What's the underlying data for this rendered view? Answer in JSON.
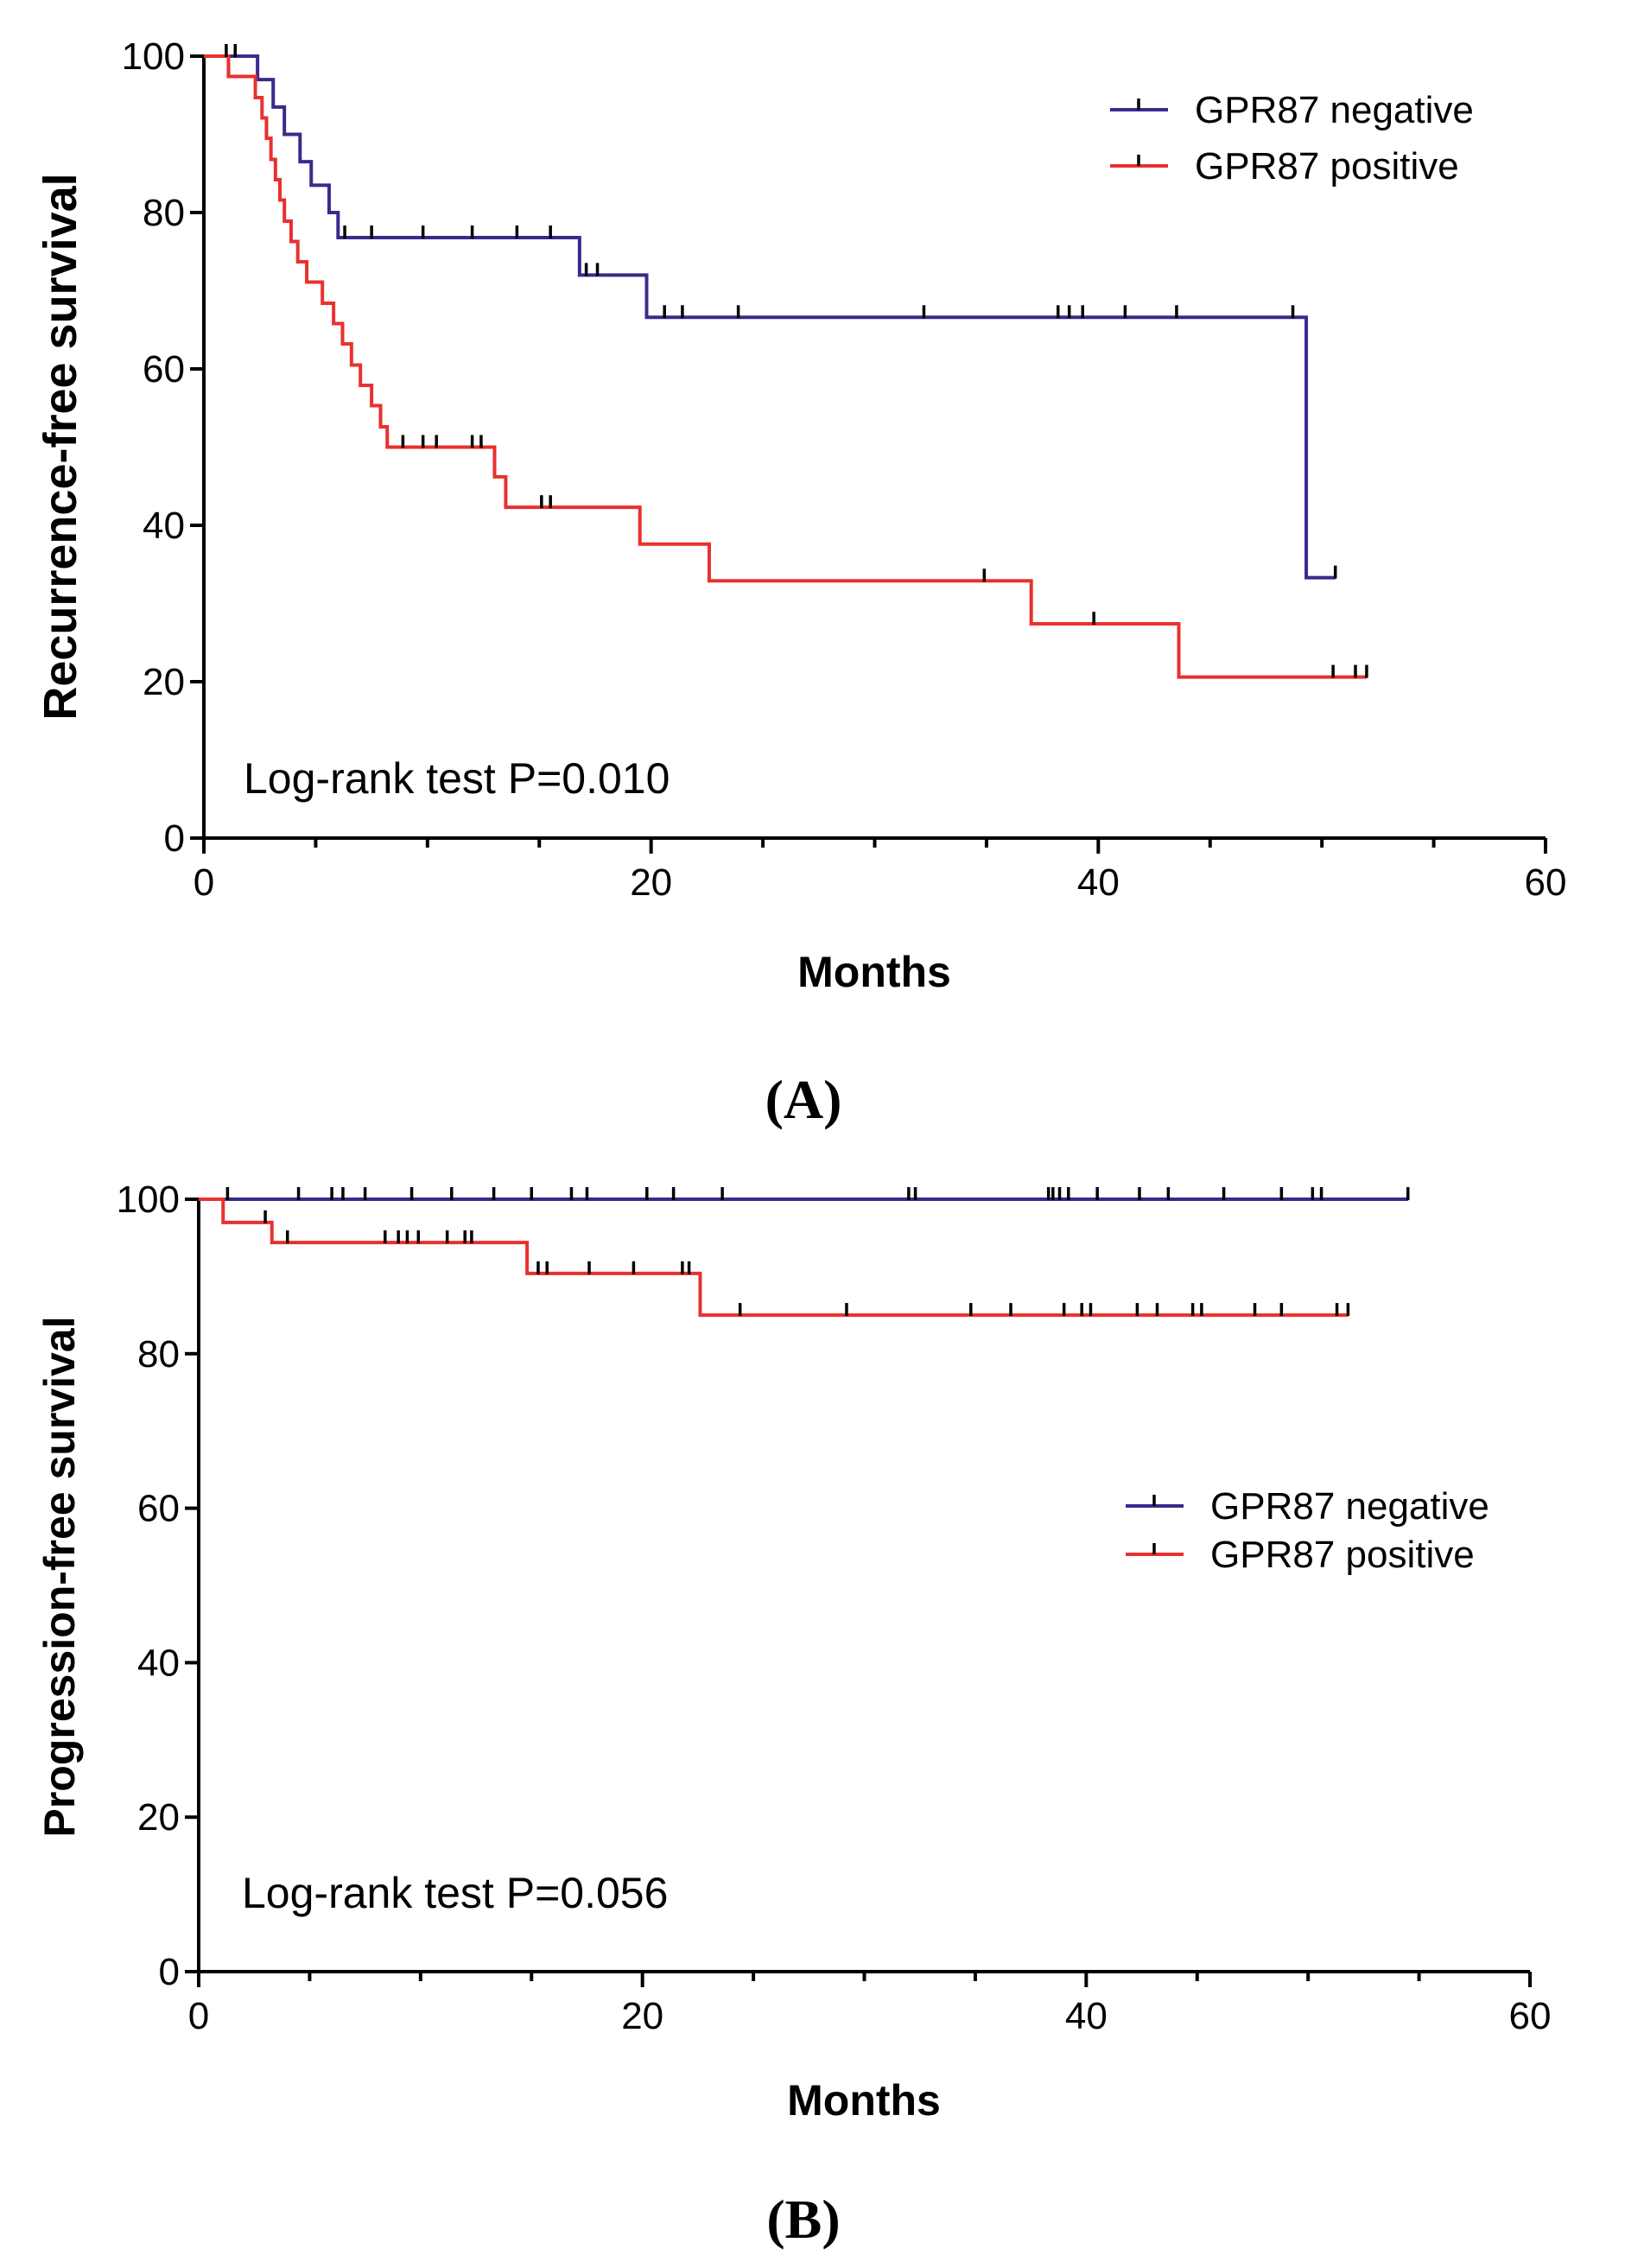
{
  "colors": {
    "negative": "#3a2a8c",
    "positive": "#e8312f",
    "axis": "#000000",
    "censor": "#000000"
  },
  "chart_data": [
    {
      "type": "line",
      "subtype": "kaplan-meier",
      "panel_label": "(A)",
      "title": "",
      "xlabel": "Months",
      "ylabel": "Recurrence-free survival",
      "xlim": [
        0,
        60
      ],
      "ylim": [
        0,
        100
      ],
      "xticks": [
        0,
        20,
        40,
        60
      ],
      "yticks": [
        0,
        20,
        40,
        60,
        80,
        100
      ],
      "annotation": "Log-rank test P=0.010",
      "legend_position": "top-right",
      "series": [
        {
          "name": "GPR87 negative",
          "color_key": "negative",
          "steps": [
            [
              0,
              100
            ],
            [
              2.4,
              97
            ],
            [
              3.1,
              93.5
            ],
            [
              3.6,
              90
            ],
            [
              4.3,
              86.5
            ],
            [
              4.8,
              83.5
            ],
            [
              5.6,
              80
            ],
            [
              6.0,
              76.8
            ],
            [
              16.8,
              72
            ],
            [
              19.8,
              66.6
            ],
            [
              49.3,
              33.3
            ],
            [
              50.6,
              33.3
            ]
          ],
          "censored": [
            [
              1.0,
              100
            ],
            [
              1.4,
              100
            ],
            [
              6.3,
              76.8
            ],
            [
              7.5,
              76.8
            ],
            [
              9.8,
              76.8
            ],
            [
              12,
              76.8
            ],
            [
              14,
              76.8
            ],
            [
              15.5,
              76.8
            ],
            [
              17.1,
              72
            ],
            [
              17.6,
              72
            ],
            [
              20.6,
              66.6
            ],
            [
              21.4,
              66.6
            ],
            [
              23.9,
              66.6
            ],
            [
              32.2,
              66.6
            ],
            [
              38.2,
              66.6
            ],
            [
              38.7,
              66.6
            ],
            [
              39.3,
              66.6
            ],
            [
              41.2,
              66.6
            ],
            [
              43.5,
              66.6
            ],
            [
              48.7,
              66.6
            ],
            [
              50.6,
              33.3
            ]
          ]
        },
        {
          "name": "GPR87 positive",
          "color_key": "positive",
          "steps": [
            [
              0,
              100
            ],
            [
              1.1,
              97.4
            ],
            [
              2.3,
              94.7
            ],
            [
              2.6,
              92.1
            ],
            [
              2.8,
              89.5
            ],
            [
              3.0,
              86.8
            ],
            [
              3.2,
              84.2
            ],
            [
              3.4,
              81.6
            ],
            [
              3.6,
              78.9
            ],
            [
              3.9,
              76.3
            ],
            [
              4.2,
              73.7
            ],
            [
              4.6,
              71.1
            ],
            [
              5.3,
              68.4
            ],
            [
              5.8,
              65.8
            ],
            [
              6.2,
              63.2
            ],
            [
              6.6,
              60.5
            ],
            [
              7.0,
              57.9
            ],
            [
              7.5,
              55.3
            ],
            [
              7.9,
              52.6
            ],
            [
              8.2,
              50
            ],
            [
              13.0,
              46.2
            ],
            [
              13.5,
              42.3
            ],
            [
              19.5,
              37.6
            ],
            [
              22.6,
              32.9
            ],
            [
              37.0,
              27.4
            ],
            [
              43.6,
              20.6
            ],
            [
              52.0,
              20.6
            ]
          ],
          "censored": [
            [
              8.9,
              50
            ],
            [
              9.8,
              50
            ],
            [
              10.4,
              50
            ],
            [
              12,
              50
            ],
            [
              12.4,
              50
            ],
            [
              15.1,
              42.3
            ],
            [
              15.5,
              42.3
            ],
            [
              34.9,
              32.9
            ],
            [
              39.8,
              27.4
            ],
            [
              50.5,
              20.6
            ],
            [
              51.5,
              20.6
            ],
            [
              52.0,
              20.6
            ]
          ]
        }
      ]
    },
    {
      "type": "line",
      "subtype": "kaplan-meier",
      "panel_label": "(B)",
      "title": "",
      "xlabel": "Months",
      "ylabel": "Progression-free survival",
      "xlim": [
        0,
        60
      ],
      "ylim": [
        0,
        100
      ],
      "xticks": [
        0,
        20,
        40,
        60
      ],
      "yticks": [
        0,
        20,
        40,
        60,
        80,
        100
      ],
      "annotation": "Log-rank test P=0.056",
      "legend_position": "center-right",
      "series": [
        {
          "name": "GPR87 negative",
          "color_key": "negative",
          "steps": [
            [
              0,
              100
            ],
            [
              54.5,
              100
            ]
          ],
          "censored": [
            [
              1.3,
              100
            ],
            [
              4.5,
              100
            ],
            [
              6,
              100
            ],
            [
              6.5,
              100
            ],
            [
              7.5,
              100
            ],
            [
              9.6,
              100
            ],
            [
              11.4,
              100
            ],
            [
              13.3,
              100
            ],
            [
              15,
              100
            ],
            [
              16.8,
              100
            ],
            [
              17.5,
              100
            ],
            [
              20.2,
              100
            ],
            [
              21.4,
              100
            ],
            [
              23.6,
              100
            ],
            [
              32,
              100
            ],
            [
              32.3,
              100
            ],
            [
              38.3,
              100
            ],
            [
              38.5,
              100
            ],
            [
              38.8,
              100
            ],
            [
              39.2,
              100
            ],
            [
              40.5,
              100
            ],
            [
              42.4,
              100
            ],
            [
              43.7,
              100
            ],
            [
              46.2,
              100
            ],
            [
              48.8,
              100
            ],
            [
              50.2,
              100
            ],
            [
              50.6,
              100
            ],
            [
              54.5,
              100
            ]
          ]
        },
        {
          "name": "GPR87 positive",
          "color_key": "positive",
          "steps": [
            [
              0,
              100
            ],
            [
              1.1,
              97
            ],
            [
              3.3,
              94.4
            ],
            [
              14.8,
              90.4
            ],
            [
              22.6,
              85
            ],
            [
              51.8,
              85
            ]
          ],
          "censored": [
            [
              3.0,
              97
            ],
            [
              4.0,
              94.4
            ],
            [
              8.4,
              94.4
            ],
            [
              9.0,
              94.4
            ],
            [
              9.4,
              94.4
            ],
            [
              9.9,
              94.4
            ],
            [
              11.2,
              94.4
            ],
            [
              12.0,
              94.4
            ],
            [
              12.3,
              94.4
            ],
            [
              15.3,
              90.4
            ],
            [
              15.7,
              90.4
            ],
            [
              17.6,
              90.4
            ],
            [
              19.6,
              90.4
            ],
            [
              21.8,
              90.4
            ],
            [
              22.1,
              90.4
            ],
            [
              24.4,
              85
            ],
            [
              29.2,
              85
            ],
            [
              34.8,
              85
            ],
            [
              36.6,
              85
            ],
            [
              39.0,
              85
            ],
            [
              39.8,
              85
            ],
            [
              40.2,
              85
            ],
            [
              42.3,
              85
            ],
            [
              43.2,
              85
            ],
            [
              44.8,
              85
            ],
            [
              45.2,
              85
            ],
            [
              47.6,
              85
            ],
            [
              48.8,
              85
            ],
            [
              51.3,
              85
            ],
            [
              51.8,
              85
            ]
          ]
        }
      ]
    }
  ]
}
